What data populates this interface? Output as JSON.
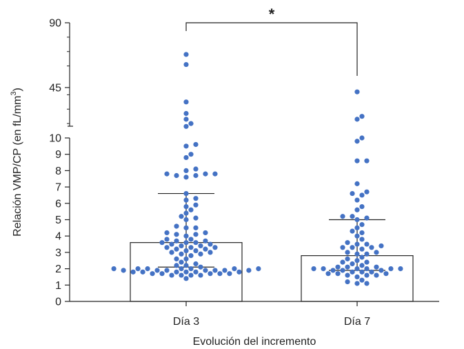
{
  "chart_data": {
    "type": "scatter",
    "subtype": "bar-with-beeswarm-and-error-bars",
    "title": "",
    "xlabel": "Evolución del incremento",
    "ylabel_parts": [
      "Relación VMP/CP (en fL/mm",
      "3",
      ")"
    ],
    "y_axis": {
      "segmented": true,
      "lower_range": [
        0,
        10
      ],
      "lower_ticks": [
        "0",
        "1",
        "2",
        "3",
        "4",
        "5",
        "6",
        "7",
        "8",
        "9",
        "10"
      ],
      "upper_range": [
        10,
        90
      ],
      "upper_ticks": [
        "45",
        "90"
      ]
    },
    "grid": false,
    "categories": [
      "Día 3",
      "Día 7"
    ],
    "bars": [
      {
        "category": "Día 3",
        "value": 3.6,
        "error_low": 2.1,
        "error_high": 6.6
      },
      {
        "category": "Día 7",
        "value": 2.8,
        "error_low": 1.9,
        "error_high": 5.0
      }
    ],
    "points": [
      {
        "category": "Día 3",
        "values": [
          1.4,
          1.6,
          1.6,
          1.6,
          1.6,
          1.7,
          1.7,
          1.7,
          1.7,
          1.7,
          1.8,
          1.8,
          1.8,
          1.8,
          1.8,
          1.8,
          1.9,
          1.9,
          1.9,
          1.9,
          1.9,
          1.9,
          1.9,
          2.0,
          2.0,
          2.0,
          2.0,
          2.0,
          2.0,
          2.0,
          2.1,
          2.2,
          2.2,
          2.3,
          2.4,
          2.6,
          2.6,
          2.8,
          2.9,
          2.9,
          3.0,
          3.0,
          3.1,
          3.1,
          3.2,
          3.2,
          3.3,
          3.3,
          3.3,
          3.4,
          3.4,
          3.5,
          3.5,
          3.6,
          3.6,
          3.6,
          3.7,
          3.7,
          3.8,
          3.8,
          4.0,
          4.1,
          4.1,
          4.2,
          4.2,
          4.5,
          4.5,
          4.6,
          5.0,
          5.1,
          5.2,
          5.4,
          5.6,
          5.8,
          5.9,
          6.2,
          6.3,
          6.6,
          7.6,
          7.7,
          7.7,
          7.8,
          7.8,
          7.8,
          8.0,
          8.1,
          8.8,
          9.0,
          9.5,
          9.6,
          18,
          20,
          23,
          27,
          35,
          61,
          68
        ]
      },
      {
        "category": "Día 7",
        "values": [
          1.1,
          1.1,
          1.2,
          1.3,
          1.5,
          1.6,
          1.6,
          1.6,
          1.7,
          1.7,
          1.7,
          1.8,
          1.8,
          1.8,
          1.9,
          1.9,
          1.9,
          2.0,
          2.0,
          2.0,
          2.0,
          2.0,
          2.0,
          2.1,
          2.1,
          2.1,
          2.2,
          2.3,
          2.4,
          2.4,
          2.5,
          2.6,
          2.7,
          2.9,
          2.9,
          3.0,
          3.0,
          3.2,
          3.3,
          3.3,
          3.3,
          3.4,
          3.5,
          3.5,
          3.6,
          3.8,
          4.0,
          4.2,
          4.3,
          4.5,
          4.7,
          5.0,
          5.1,
          5.2,
          5.2,
          5.6,
          5.8,
          6.2,
          6.5,
          6.6,
          6.7,
          7.2,
          8.6,
          8.6,
          9.8,
          10.0,
          23,
          25,
          42
        ]
      }
    ],
    "significance": {
      "label": "*",
      "between": [
        "Día 3",
        "Día 7"
      ]
    },
    "colors": {
      "points": "#4472c4",
      "axis": "#222222",
      "bar_fill": "#ffffff",
      "bar_stroke": "#222222"
    }
  }
}
